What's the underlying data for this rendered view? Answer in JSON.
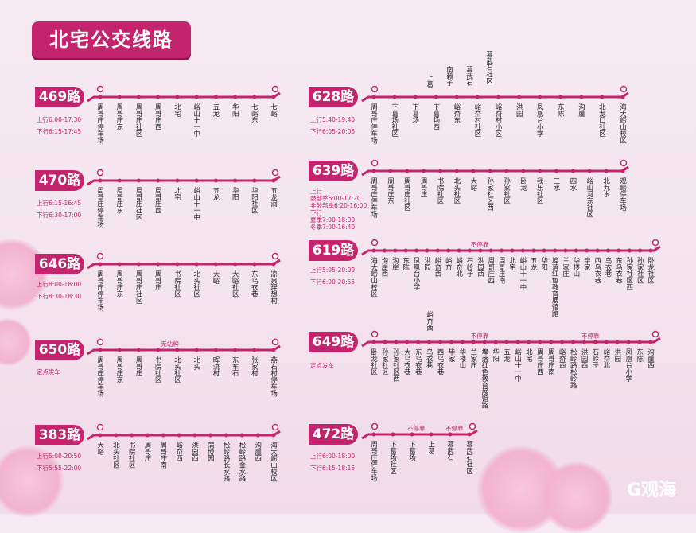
{
  "title": "北宅公交线路",
  "logo_text": "G观海",
  "colors": {
    "accent": "#c4246e"
  },
  "routes": [
    {
      "id": "469",
      "label": "469路",
      "schedule": [
        "上行6:00-17:30",
        "下行6:15-17:45"
      ],
      "stops": [
        "周哥庄停车场",
        "周哥庄东",
        "周哥庄社区",
        "周哥庄西",
        "北宅",
        "峪山十一中",
        "五龙",
        "华阳",
        "七峪东",
        "七峪"
      ],
      "above": [],
      "notes": []
    },
    {
      "id": "470",
      "label": "470路",
      "schedule": [
        "上行6:15-16:45",
        "下行6:30-17:00"
      ],
      "stops": [
        "周哥庄停车场",
        "周哥庄东",
        "周哥庄社区",
        "周哥庄西",
        "北宅",
        "峪山十一中",
        "五龙",
        "华阳",
        "华阳社区",
        "五龙涧"
      ],
      "above": [],
      "notes": []
    },
    {
      "id": "646",
      "label": "646路",
      "schedule": [
        "上行8:00-18:00",
        "下行8:30-18:30"
      ],
      "stops": [
        "周哥庄停车场",
        "周哥庄东",
        "周哥庄社区",
        "周哥庄",
        "书院社区",
        "北头社区",
        "大峪",
        "大峪社区",
        "东乌衣巷",
        "凉泉理想村"
      ],
      "above": [],
      "notes": []
    },
    {
      "id": "650",
      "label": "650路",
      "schedule": [
        "定点发车"
      ],
      "stops": [
        "周哥庄停车场",
        "周哥庄东",
        "周哥庄",
        "书院社区",
        "北头社区",
        "北头",
        "晖流村",
        "东车石",
        "张家村",
        "燕石村停车场"
      ],
      "above": [],
      "notes": [
        "无站牌"
      ]
    },
    {
      "id": "383",
      "label": "383路",
      "schedule": [
        "上行5:00-20:50",
        "下行5:55-22:00"
      ],
      "stops": [
        "大峪",
        "北头社区",
        "书院社区",
        "周哥庄",
        "周哥庄南",
        "峪夼西",
        "洪园西",
        "蒲博园",
        "松岭路长水路",
        "松岭路金水路",
        "沟崖西",
        "海大崂山校区"
      ],
      "above": [],
      "notes": []
    },
    {
      "id": "628",
      "label": "628路",
      "schedule": [
        "上行5:40-19:40",
        "下行6:05-20:05"
      ],
      "stops": [
        "周哥庄停车场",
        "下葛场社区",
        "下葛场",
        "下葛场西",
        "峪夼东",
        "峪夼村社区",
        "峪夼村小区",
        "洪园",
        "凤凰台小学",
        "东陈",
        "沟崖",
        "北龙口社区",
        "海大崂山校区"
      ],
      "above": [
        "上葛",
        "南赖子",
        "慕武石",
        "慕武石社区"
      ],
      "notes": []
    },
    {
      "id": "639",
      "label": "639路",
      "schedule": [
        "上行",
        "鼓部季6:00-17:20",
        "非鼓部季6:20-16:00",
        "下行",
        "夏季7:00-18:00",
        "冬季7:00-16:40"
      ],
      "stops": [
        "周哥庄停车场",
        "周哥庄东",
        "周哥庄社区",
        "周哥庄",
        "书院社区",
        "北头社区",
        "大峪",
        "孙家社区西",
        "孙家社区",
        "卧龙",
        "我乐社区",
        "三水",
        "四水",
        "峪山河东社区",
        "北九水",
        "观崂停车场"
      ],
      "above": [],
      "notes": []
    },
    {
      "id": "619",
      "label": "619路",
      "schedule": [
        "上行5:05-20:00",
        "下行6:00-20:55"
      ],
      "stops": [
        "海大崂山校区",
        "沟崖西",
        "沟崖",
        "东陈",
        "凤凰台小学",
        "洪园",
        "峪夼西",
        "峪夼",
        "峪夼北",
        "石岭子",
        "洪园西",
        "周哥庄西",
        "周哥庄南",
        "北宅",
        "峪山十一中",
        "五龙",
        "华阳",
        "埠落红色教育展馆路",
        "兰家庄",
        "华楼山",
        "毕家",
        "西乌衣巷",
        "乌衣巷",
        "东乌衣巷",
        "孙家社区西",
        "孙家社区",
        "卧龙社区"
      ],
      "above": [],
      "notes": [
        "不停靠"
      ]
    },
    {
      "id": "649",
      "label": "649路",
      "schedule": [
        "定点发车"
      ],
      "stops": [
        "卧龙社区",
        "孙家社区",
        "孙家社区西",
        "大乌衣巷",
        "东乌衣巷",
        "乌衣巷",
        "西乌衣巷",
        "毕家",
        "华楼山",
        "兰家庄",
        "埠落红色教育展馆路",
        "华阳",
        "五龙",
        "峪山十一中",
        "北宅",
        "周哥庄西",
        "周哥庄南",
        "峪夼西",
        "松岭路松岭路",
        "洪园西",
        "石岭子",
        "峪夼北",
        "洪园",
        "凤凰台小学",
        "东陈",
        "沟崖西"
      ],
      "above": [
        "峪夼西"
      ],
      "notes": [
        "不停靠",
        "不停靠"
      ]
    },
    {
      "id": "472",
      "label": "472路",
      "schedule": [
        "上行6:00-18:00",
        "下行6:15-18:15"
      ],
      "stops": [
        "周哥庄停车场",
        "下葛场社区",
        "下葛场",
        "上葛",
        "慕武石",
        "慕武石社区"
      ],
      "above": [],
      "notes": [
        "不停靠",
        "不停靠"
      ]
    }
  ]
}
